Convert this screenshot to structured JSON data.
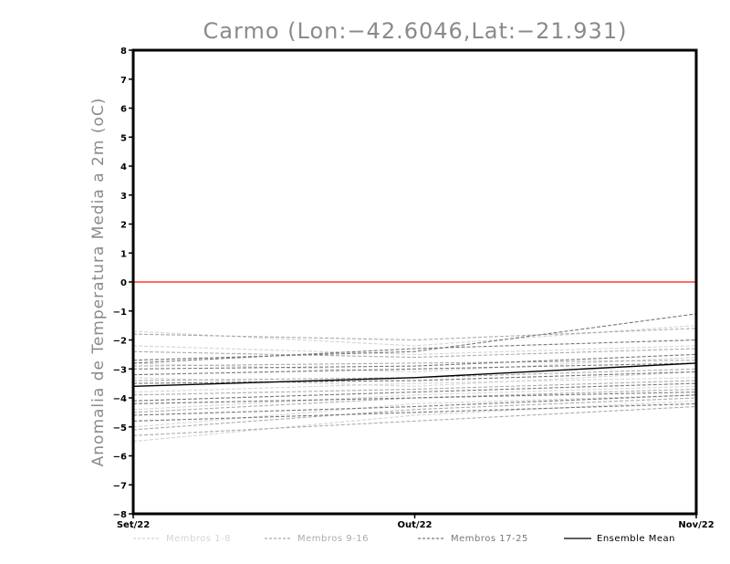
{
  "chart_data": {
    "type": "line",
    "title": "Carmo (Lon:−42.6046,Lat:−21.931)",
    "ylabel": "Anomalia de Temperatura Media a 2m (oC)",
    "xlabel": "",
    "x_categories": [
      "Set/22",
      "Out/22",
      "Nov/22"
    ],
    "ylim": [
      -8,
      8
    ],
    "yticks": [
      8,
      7,
      6,
      5,
      4,
      3,
      2,
      1,
      0,
      -1,
      -2,
      -3,
      -4,
      -5,
      -6,
      -7,
      -8
    ],
    "ytick_labels": [
      "8",
      "7",
      "6",
      "5",
      "4",
      "3",
      "2",
      "1",
      "0",
      "−1",
      "−2",
      "−3",
      "−4",
      "−5",
      "−6",
      "−7",
      "−8"
    ],
    "reference_line": {
      "y": 0,
      "color": "#ff3b30"
    },
    "series": [
      {
        "group": "Membros 1-8",
        "color": "#d4d4d4",
        "dashed": true,
        "values": [
          -1.7,
          -2.2,
          -1.5
        ]
      },
      {
        "group": "Membros 1-8",
        "color": "#d4d4d4",
        "dashed": true,
        "values": [
          -2.2,
          -2.5,
          -2.2
        ]
      },
      {
        "group": "Membros 1-8",
        "color": "#d4d4d4",
        "dashed": true,
        "values": [
          -2.8,
          -3.1,
          -2.6
        ]
      },
      {
        "group": "Membros 1-8",
        "color": "#d4d4d4",
        "dashed": true,
        "values": [
          -3.3,
          -3.6,
          -3.1
        ]
      },
      {
        "group": "Membros 1-8",
        "color": "#d4d4d4",
        "dashed": true,
        "values": [
          -3.8,
          -3.5,
          -3.3
        ]
      },
      {
        "group": "Membros 1-8",
        "color": "#d4d4d4",
        "dashed": true,
        "values": [
          -4.4,
          -3.9,
          -3.6
        ]
      },
      {
        "group": "Membros 1-8",
        "color": "#d4d4d4",
        "dashed": true,
        "values": [
          -5.0,
          -4.2,
          -3.9
        ]
      },
      {
        "group": "Membros 1-8",
        "color": "#d4d4d4",
        "dashed": true,
        "values": [
          -5.5,
          -4.6,
          -4.1
        ]
      },
      {
        "group": "Membros 9-16",
        "color": "#ababab",
        "dashed": true,
        "values": [
          -1.8,
          -2.0,
          -1.6
        ]
      },
      {
        "group": "Membros 9-16",
        "color": "#ababab",
        "dashed": true,
        "values": [
          -2.4,
          -2.6,
          -2.3
        ]
      },
      {
        "group": "Membros 9-16",
        "color": "#ababab",
        "dashed": true,
        "values": [
          -2.9,
          -2.8,
          -2.7
        ]
      },
      {
        "group": "Membros 9-16",
        "color": "#ababab",
        "dashed": true,
        "values": [
          -3.4,
          -3.3,
          -3.0
        ]
      },
      {
        "group": "Membros 9-16",
        "color": "#ababab",
        "dashed": true,
        "values": [
          -3.9,
          -3.7,
          -3.4
        ]
      },
      {
        "group": "Membros 9-16",
        "color": "#ababab",
        "dashed": true,
        "values": [
          -4.5,
          -4.0,
          -3.7
        ]
      },
      {
        "group": "Membros 9-16",
        "color": "#ababab",
        "dashed": true,
        "values": [
          -5.1,
          -4.4,
          -4.0
        ]
      },
      {
        "group": "Membros 9-16",
        "color": "#ababab",
        "dashed": true,
        "values": [
          -5.3,
          -4.8,
          -4.3
        ]
      },
      {
        "group": "Membros 17-25",
        "color": "#777777",
        "dashed": true,
        "values": [
          -2.7,
          -2.4,
          -1.1
        ]
      },
      {
        "group": "Membros 17-25",
        "color": "#777777",
        "dashed": true,
        "values": [
          -2.8,
          -2.3,
          -2.0
        ]
      },
      {
        "group": "Membros 17-25",
        "color": "#777777",
        "dashed": true,
        "values": [
          -3.0,
          -2.9,
          -2.5
        ]
      },
      {
        "group": "Membros 17-25",
        "color": "#777777",
        "dashed": true,
        "values": [
          -3.2,
          -3.0,
          -2.8
        ]
      },
      {
        "group": "Membros 17-25",
        "color": "#777777",
        "dashed": true,
        "values": [
          -3.5,
          -3.4,
          -3.1
        ]
      },
      {
        "group": "Membros 17-25",
        "color": "#777777",
        "dashed": true,
        "values": [
          -4.1,
          -3.8,
          -3.5
        ]
      },
      {
        "group": "Membros 17-25",
        "color": "#777777",
        "dashed": true,
        "values": [
          -4.2,
          -4.0,
          -3.8
        ]
      },
      {
        "group": "Membros 17-25",
        "color": "#777777",
        "dashed": true,
        "values": [
          -4.8,
          -4.5,
          -4.2
        ]
      },
      {
        "group": "Membros 17-25",
        "color": "#777777",
        "dashed": true,
        "values": [
          -4.6,
          -4.3,
          -3.9
        ]
      },
      {
        "group": "Ensemble Mean",
        "color": "#000000",
        "dashed": false,
        "values": [
          -3.6,
          -3.3,
          -2.8
        ]
      }
    ],
    "legend": {
      "placement": "bottom",
      "entries": [
        {
          "label": "Membros 1-8",
          "color": "#d4d4d4",
          "dashed": true
        },
        {
          "label": "Membros 9-16",
          "color": "#ababab",
          "dashed": true
        },
        {
          "label": "Membros 17-25",
          "color": "#777777",
          "dashed": true
        },
        {
          "label": "Ensemble Mean",
          "color": "#000000",
          "dashed": false
        }
      ]
    }
  }
}
